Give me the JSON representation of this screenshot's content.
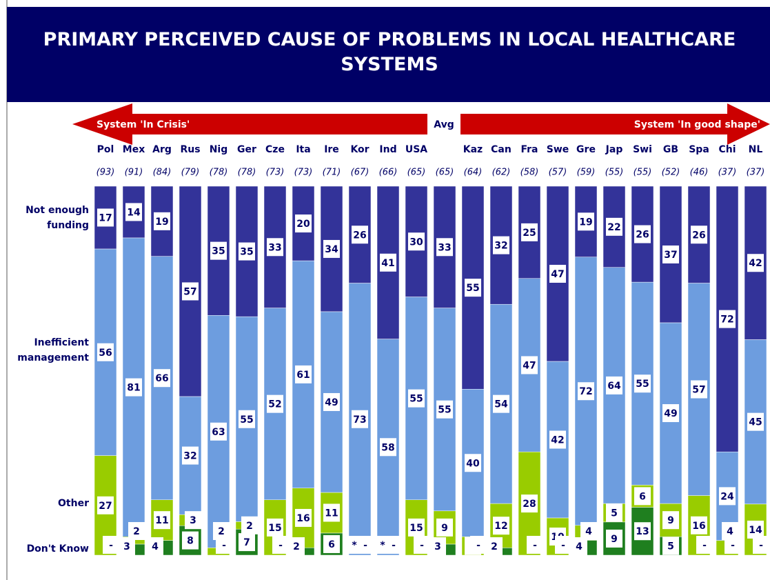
{
  "chart_data": {
    "type": "stacked-bar",
    "title": "PRIMARY PERCEIVED CAUSE OF PROBLEMS IN LOCAL HEALTHCARE SYSTEMS",
    "left_arrow_label": "System 'In Crisis'",
    "right_arrow_label": "System 'In good shape'",
    "avg_label": "Avg",
    "categories": [
      "Pol",
      "Mex",
      "Arg",
      "Rus",
      "Nig",
      "Ger",
      "Cze",
      "Ita",
      "Ire",
      "Kor",
      "Ind",
      "USA",
      null,
      "Kaz",
      "Can",
      "Fra",
      "Swe",
      "Gre",
      "Jap",
      "Swi",
      "GB",
      "Spa",
      "Chi",
      "NL"
    ],
    "scores": [
      {
        "value": 93,
        "label": "(93)"
      },
      {
        "value": 91,
        "label": "(91)"
      },
      {
        "value": 84,
        "label": "(84)"
      },
      {
        "value": 79,
        "label": "(79)"
      },
      {
        "value": 78,
        "label": "(78)"
      },
      {
        "value": 78,
        "label": "(78)"
      },
      {
        "value": 73,
        "label": "(73)"
      },
      {
        "value": 73,
        "label": "(73)"
      },
      {
        "value": 71,
        "label": "(71)"
      },
      {
        "value": 67,
        "label": "(67)"
      },
      {
        "value": 66,
        "label": "(66)"
      },
      {
        "value": 65,
        "label": "(65)"
      },
      {
        "value": 65,
        "label": "(65)"
      },
      {
        "value": 64,
        "label": "(64)"
      },
      {
        "value": 62,
        "label": "(62)"
      },
      {
        "value": 58,
        "label": "(58)"
      },
      {
        "value": 57,
        "label": "(57)"
      },
      {
        "value": 59,
        "label": "(59)"
      },
      {
        "value": 55,
        "label": "(55)"
      },
      {
        "value": 55,
        "label": "(55)"
      },
      {
        "value": 52,
        "label": "(52)"
      },
      {
        "value": 46,
        "label": "(46)"
      },
      {
        "value": 37,
        "label": "(37)"
      },
      {
        "value": 37,
        "label": "(37)"
      }
    ],
    "series": [
      {
        "name": "Not enough funding",
        "color": "#333399",
        "values": [
          17,
          14,
          19,
          57,
          35,
          35,
          33,
          20,
          34,
          26,
          41,
          30,
          33,
          55,
          32,
          25,
          47,
          19,
          22,
          26,
          37,
          26,
          72,
          42
        ]
      },
      {
        "name": "Inefficient management",
        "color": "#6d9ddf",
        "values": [
          56,
          81,
          66,
          32,
          63,
          55,
          52,
          61,
          49,
          73,
          58,
          55,
          55,
          40,
          54,
          47,
          42,
          72,
          64,
          55,
          49,
          57,
          24,
          45
        ]
      },
      {
        "name": "Other",
        "color": "#99cc00",
        "values": [
          27,
          2,
          11,
          3,
          2,
          2,
          15,
          16,
          11,
          null,
          null,
          15,
          9,
          5,
          12,
          28,
          10,
          4,
          5,
          6,
          9,
          16,
          4,
          14
        ],
        "value_labels": [
          null,
          null,
          null,
          null,
          null,
          null,
          null,
          null,
          null,
          "*",
          "*",
          null,
          null,
          null,
          null,
          null,
          null,
          null,
          null,
          null,
          null,
          null,
          null,
          null
        ]
      },
      {
        "name": "Don't Know",
        "color": "#1f7f1f",
        "values": [
          null,
          3,
          4,
          8,
          null,
          7,
          null,
          2,
          6,
          null,
          null,
          null,
          3,
          null,
          2,
          null,
          null,
          4,
          9,
          13,
          5,
          null,
          null,
          null
        ],
        "value_labels": [
          "-",
          null,
          null,
          null,
          "-",
          null,
          "-",
          null,
          null,
          "-",
          "-",
          "-",
          null,
          "-",
          null,
          "-",
          "-",
          null,
          null,
          null,
          null,
          "-",
          "-",
          "-"
        ]
      }
    ]
  }
}
